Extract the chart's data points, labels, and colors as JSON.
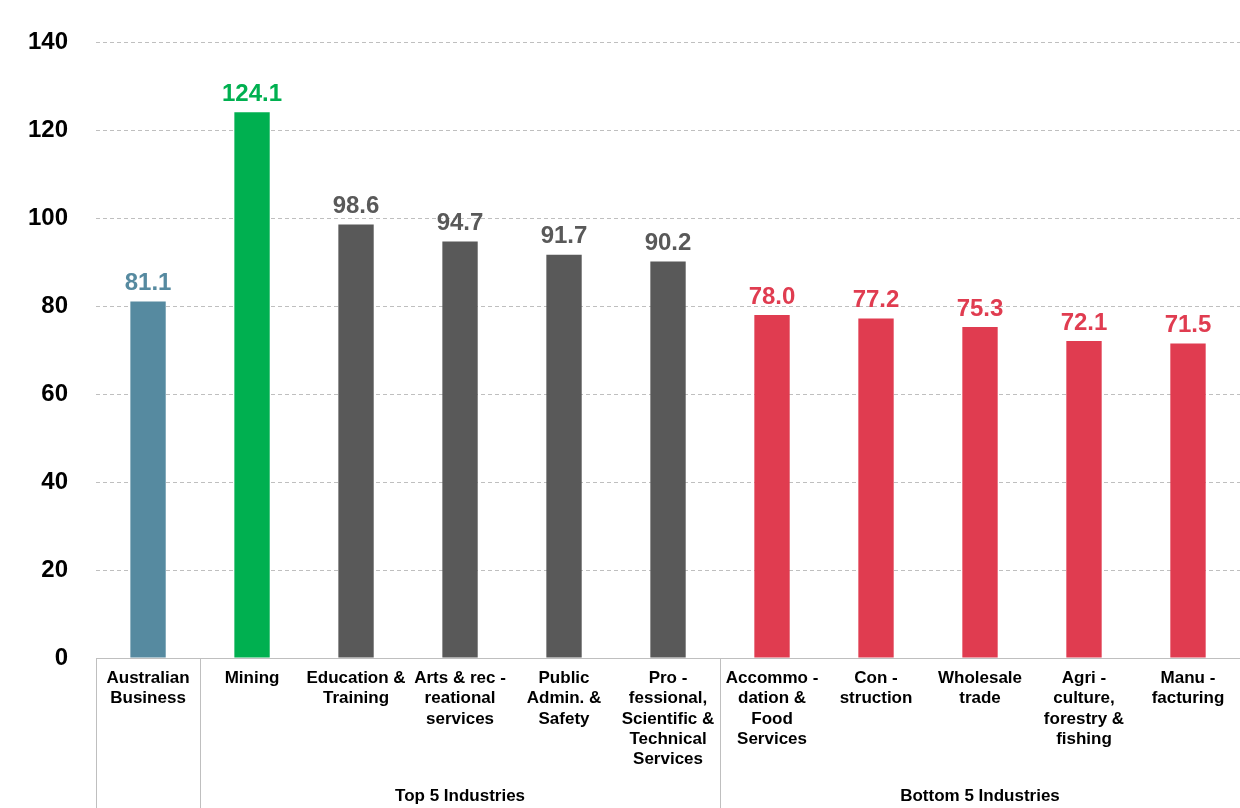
{
  "chart_data": {
    "type": "bar",
    "categories": [
      "Australian Business",
      "Mining",
      "Education & Training",
      "Arts & rec - reational services",
      "Public Admin. & Safety",
      "Pro - fessional, Scientific & Technical Services",
      "Accommo - dation & Food Services",
      "Con - struction",
      "Wholesale trade",
      "Agri - culture, forestry & fishing",
      "Manu - facturing"
    ],
    "values": [
      81.1,
      124.1,
      98.6,
      94.7,
      91.7,
      90.2,
      78.0,
      77.2,
      75.3,
      72.1,
      71.5
    ],
    "colors": [
      "#568aa0",
      "#00b050",
      "#595959",
      "#595959",
      "#595959",
      "#595959",
      "#e03c50",
      "#e03c50",
      "#e03c50",
      "#e03c50",
      "#e03c50"
    ],
    "value_labels": [
      "81.1",
      "124.1",
      "98.6",
      "94.7",
      "91.7",
      "90.2",
      "78.0",
      "77.2",
      "75.3",
      "72.1",
      "71.5"
    ],
    "ylim": [
      0,
      140
    ],
    "yticks": [
      0,
      20,
      40,
      60,
      80,
      100,
      120,
      140
    ],
    "grid": "y",
    "legend": false,
    "annotations": [
      "Top 5 Industries",
      "Bottom 5 Industries"
    ]
  }
}
